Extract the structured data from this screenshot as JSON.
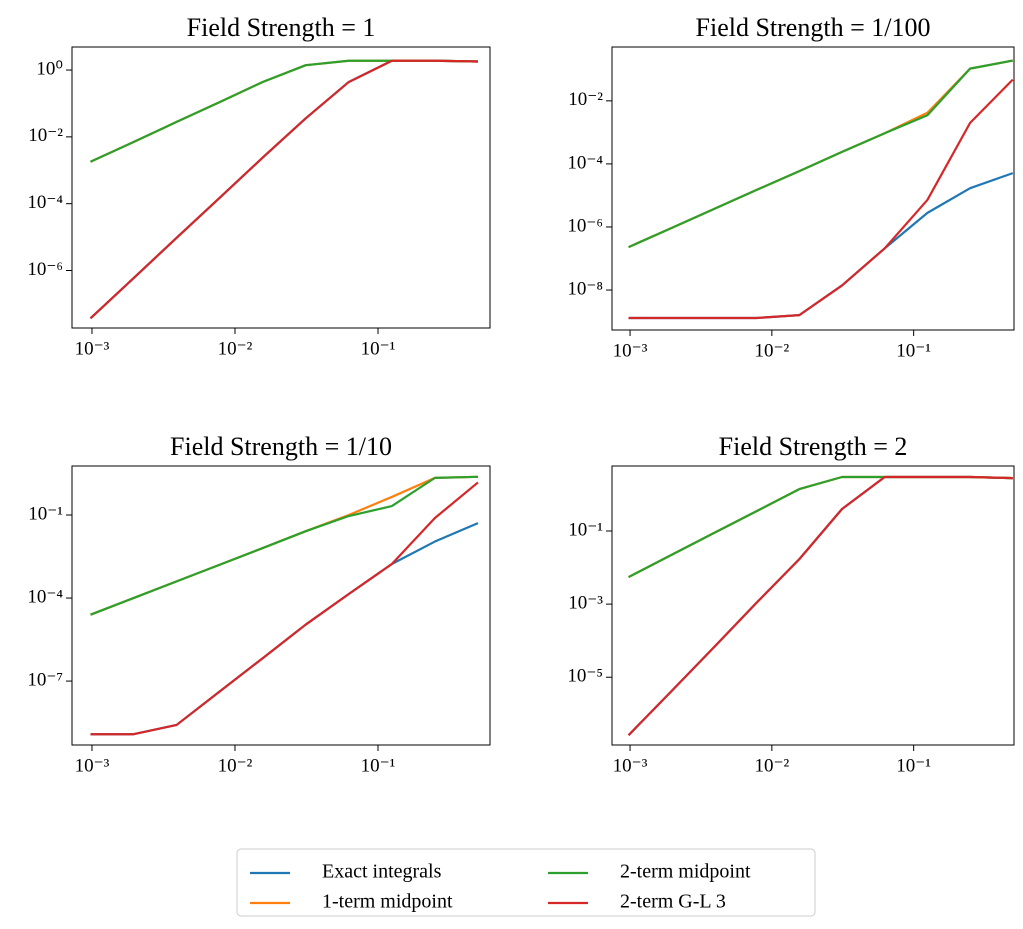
{
  "chart_data": [
    {
      "type": "line",
      "title": "Field Strength = 1",
      "log_x": true,
      "log_y": true,
      "x": [
        0.0009765625,
        0.001953125,
        0.00390625,
        0.0078125,
        0.015625,
        0.03125,
        0.0625,
        0.125,
        0.25,
        0.5
      ],
      "xlim": [
        0.000725,
        0.607
      ],
      "ylim": [
        1.9e-08,
        4.9
      ],
      "xticks": [
        {
          "value": 0.001,
          "label": "10⁻³"
        },
        {
          "value": 0.01,
          "label": "10⁻²"
        },
        {
          "value": 0.1,
          "label": "10⁻¹"
        }
      ],
      "yticks": [
        {
          "value": 1,
          "label": "10⁰"
        },
        {
          "value": 0.01,
          "label": "10⁻²"
        },
        {
          "value": 0.0001,
          "label": "10⁻⁴"
        },
        {
          "value": 1e-06,
          "label": "10⁻⁶"
        }
      ],
      "series": [
        {
          "name": "Exact integrals",
          "color": "#1f77b4",
          "values": [
            3.7e-08,
            5.9e-07,
            9.5e-06,
            0.00015,
            0.0024,
            0.036,
            0.44,
            1.9,
            1.9,
            1.8
          ]
        },
        {
          "name": "1-term midpoint",
          "color": "#ff7f0e",
          "values": [
            0.0018,
            0.007,
            0.028,
            0.11,
            0.44,
            1.4,
            1.9,
            1.9,
            1.9,
            1.8
          ]
        },
        {
          "name": "2-term midpoint",
          "color": "#2ca02c",
          "values": [
            0.0018,
            0.007,
            0.028,
            0.11,
            0.44,
            1.4,
            1.9,
            1.9,
            1.9,
            1.8
          ]
        },
        {
          "name": "2-term G-L 3",
          "color": "#d62728",
          "values": [
            3.7e-08,
            5.9e-07,
            9.5e-06,
            0.00015,
            0.0024,
            0.036,
            0.44,
            1.9,
            1.9,
            1.8
          ]
        }
      ]
    },
    {
      "type": "line",
      "title": "Field Strength = 1/100",
      "log_x": true,
      "log_y": true,
      "x": [
        0.0009765625,
        0.001953125,
        0.00390625,
        0.0078125,
        0.015625,
        0.03125,
        0.0625,
        0.125,
        0.25,
        0.5
      ],
      "xlim": [
        0.000746,
        0.51
      ],
      "ylim": [
        5.4e-10,
        0.51
      ],
      "xticks": [
        {
          "value": 0.001,
          "label": "10⁻³"
        },
        {
          "value": 0.01,
          "label": "10⁻²"
        },
        {
          "value": 0.1,
          "label": "10⁻¹"
        }
      ],
      "yticks": [
        {
          "value": 0.01,
          "label": "10⁻²"
        },
        {
          "value": 0.0001,
          "label": "10⁻⁴"
        },
        {
          "value": 1e-06,
          "label": "10⁻⁶"
        },
        {
          "value": 1e-08,
          "label": "10⁻⁸"
        }
      ],
      "series": [
        {
          "name": "Exact integrals",
          "color": "#1f77b4",
          "values": [
            1.3e-09,
            1.3e-09,
            1.3e-09,
            1.3e-09,
            1.6e-09,
            1.4e-08,
            2.1e-07,
            2.8e-06,
            1.7e-05,
            5.1e-05
          ]
        },
        {
          "name": "1-term midpoint",
          "color": "#ff7f0e",
          "values": [
            2.3e-07,
            9.2e-07,
            3.7e-06,
            1.5e-05,
            5.9e-05,
            0.00024,
            0.00094,
            0.0042,
            0.105,
            0.19
          ]
        },
        {
          "name": "2-term midpoint",
          "color": "#2ca02c",
          "values": [
            2.3e-07,
            9.2e-07,
            3.7e-06,
            1.5e-05,
            5.9e-05,
            0.00024,
            0.00094,
            0.0035,
            0.105,
            0.19
          ]
        },
        {
          "name": "2-term G-L 3",
          "color": "#d62728",
          "values": [
            1.3e-09,
            1.3e-09,
            1.3e-09,
            1.3e-09,
            1.6e-09,
            1.4e-08,
            2.1e-07,
            7.2e-06,
            0.002,
            0.047
          ]
        }
      ]
    },
    {
      "type": "line",
      "title": "Field Strength = 1/10",
      "log_x": true,
      "log_y": true,
      "x": [
        0.0009765625,
        0.001953125,
        0.00390625,
        0.0078125,
        0.015625,
        0.03125,
        0.0625,
        0.125,
        0.25,
        0.5
      ],
      "xlim": [
        0.000725,
        0.607
      ],
      "ylim": [
        4.9e-10,
        5.9
      ],
      "xticks": [
        {
          "value": 0.001,
          "label": "10⁻³"
        },
        {
          "value": 0.01,
          "label": "10⁻²"
        },
        {
          "value": 0.1,
          "label": "10⁻¹"
        }
      ],
      "yticks": [
        {
          "value": 0.1,
          "label": "10⁻¹"
        },
        {
          "value": 0.0001,
          "label": "10⁻⁴"
        },
        {
          "value": 1e-07,
          "label": "10⁻⁷"
        }
      ],
      "series": [
        {
          "name": "Exact integrals",
          "color": "#1f77b4",
          "values": [
            1.2e-09,
            1.2e-09,
            2.6e-09,
            4.2e-08,
            6.7e-07,
            1.1e-05,
            0.00014,
            0.0017,
            0.011,
            0.051
          ]
        },
        {
          "name": "1-term midpoint",
          "color": "#ff7f0e",
          "values": [
            2.5e-05,
            0.0001,
            0.0004,
            0.0016,
            0.0064,
            0.026,
            0.1,
            0.45,
            2.2,
            2.4
          ]
        },
        {
          "name": "2-term midpoint",
          "color": "#2ca02c",
          "values": [
            2.5e-05,
            0.0001,
            0.0004,
            0.0016,
            0.0064,
            0.026,
            0.092,
            0.21,
            2.2,
            2.4
          ]
        },
        {
          "name": "2-term G-L 3",
          "color": "#d62728",
          "values": [
            1.2e-09,
            1.2e-09,
            2.6e-09,
            4.2e-08,
            6.7e-07,
            1.1e-05,
            0.00014,
            0.0017,
            0.078,
            1.5
          ]
        }
      ]
    },
    {
      "type": "line",
      "title": "Field Strength = 2",
      "log_x": true,
      "log_y": true,
      "x": [
        0.0009765625,
        0.001953125,
        0.00390625,
        0.0078125,
        0.015625,
        0.03125,
        0.0625,
        0.125,
        0.25,
        0.5
      ],
      "xlim": [
        0.000746,
        0.51
      ],
      "ylim": [
        1.4e-07,
        6
      ],
      "xticks": [
        {
          "value": 0.001,
          "label": "10⁻³"
        },
        {
          "value": 0.01,
          "label": "10⁻²"
        },
        {
          "value": 0.1,
          "label": "10⁻¹"
        }
      ],
      "yticks": [
        {
          "value": 0.1,
          "label": "10⁻¹"
        },
        {
          "value": 0.001,
          "label": "10⁻³"
        },
        {
          "value": 1e-05,
          "label": "10⁻⁵"
        }
      ],
      "series": [
        {
          "name": "Exact integrals",
          "color": "#1f77b4",
          "values": [
            2.6e-07,
            4.1e-06,
            6.6e-05,
            0.0011,
            0.017,
            0.4,
            3,
            3,
            3,
            2.8
          ]
        },
        {
          "name": "1-term midpoint",
          "color": "#ff7f0e",
          "values": [
            0.0055,
            0.022,
            0.088,
            0.35,
            1.4,
            3,
            3,
            3,
            3,
            2.8
          ]
        },
        {
          "name": "2-term midpoint",
          "color": "#2ca02c",
          "values": [
            0.0055,
            0.022,
            0.088,
            0.35,
            1.4,
            3,
            3,
            3,
            3,
            2.8
          ]
        },
        {
          "name": "2-term G-L 3",
          "color": "#d62728",
          "values": [
            2.6e-07,
            4.1e-06,
            6.6e-05,
            0.0011,
            0.017,
            0.4,
            3,
            3,
            3,
            2.8
          ]
        }
      ]
    }
  ]
}
